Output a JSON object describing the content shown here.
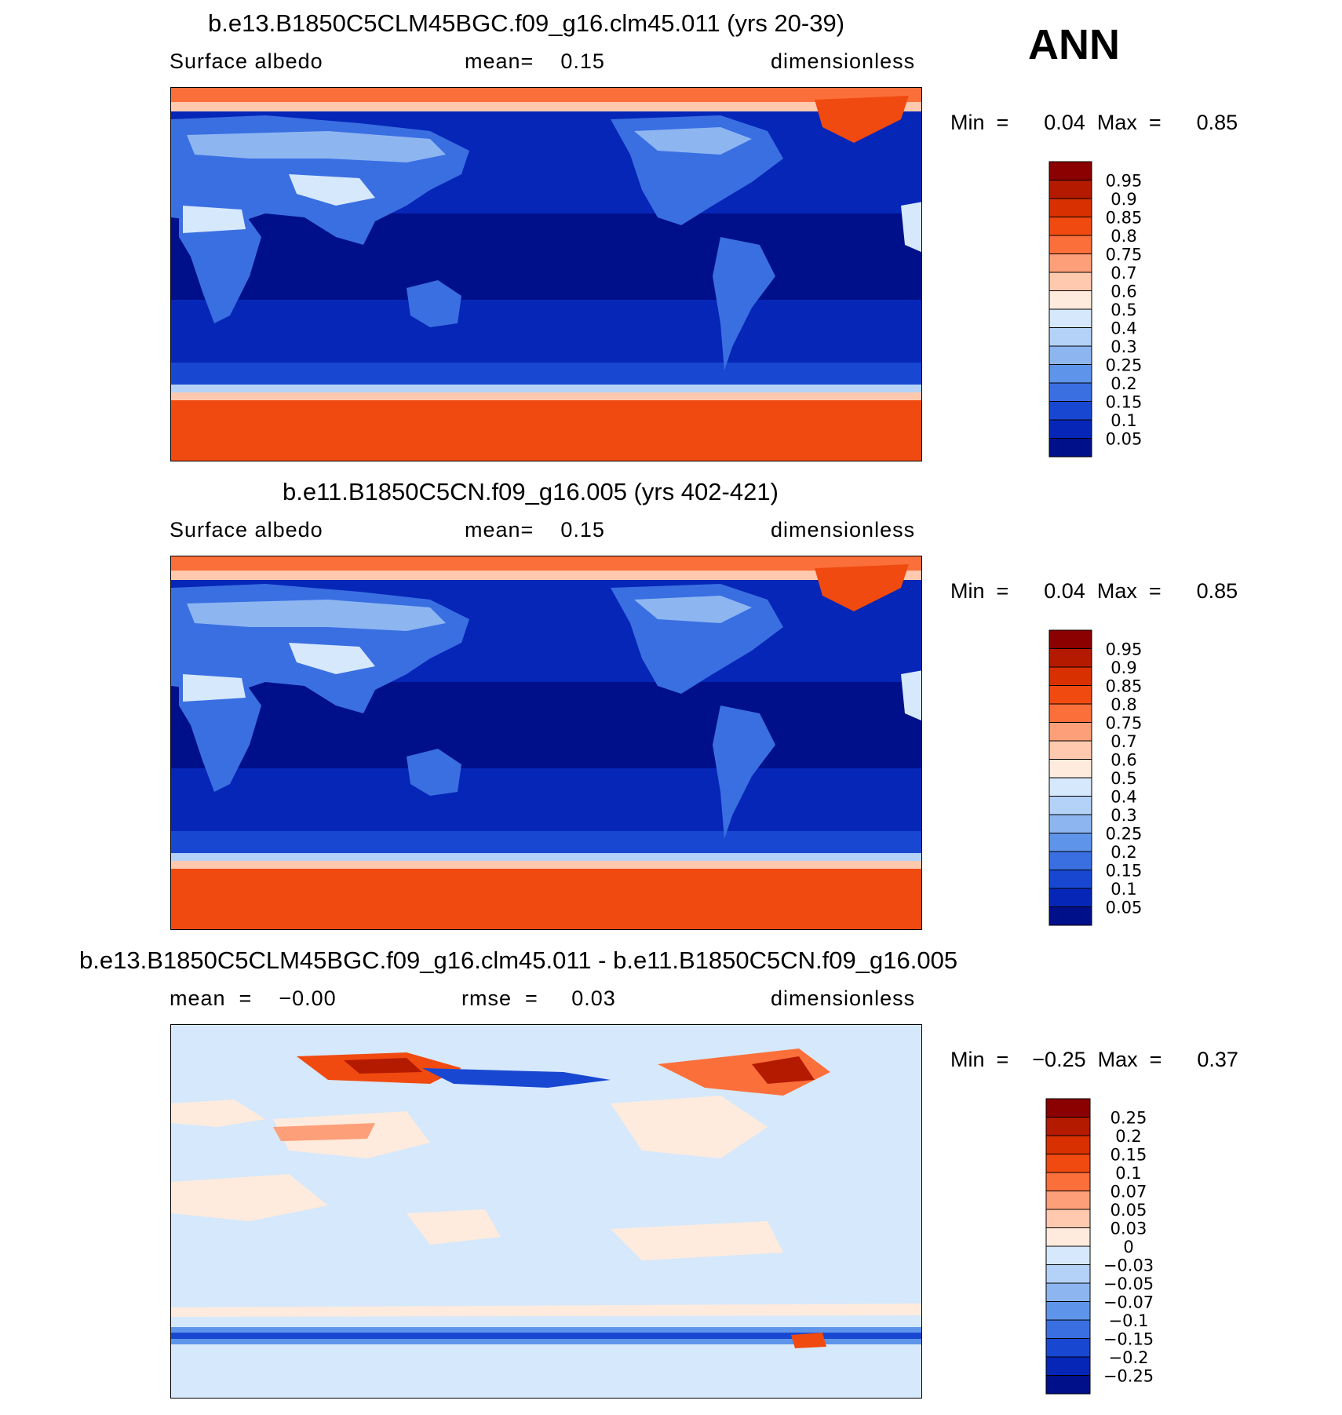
{
  "season": "ANN",
  "panels": [
    {
      "title": "b.e13.B1850C5CLM45BGC.f09_g16.clm45.011 (yrs 20-39)",
      "left": "Surface  albedo",
      "mid": "mean=    0.15",
      "right": "dimensionless",
      "minmax": "Min  =      0.04  Max  =      0.85",
      "colorbar": {
        "levels": [
          "0.95",
          "0.9",
          "0.85",
          "0.8",
          "0.75",
          "0.7",
          "0.6",
          "0.5",
          "0.4",
          "0.3",
          "0.25",
          "0.2",
          "0.15",
          "0.1",
          "0.05"
        ],
        "colors": [
          "#8b0000",
          "#b31a00",
          "#d93000",
          "#f04a10",
          "#fb6f3a",
          "#fd9f78",
          "#fec9ae",
          "#feebdd",
          "#d6e8fb",
          "#b4d2f7",
          "#8db6f1",
          "#5e95ea",
          "#3a6fe2",
          "#1848d2",
          "#0626b8",
          "#00108a"
        ]
      }
    },
    {
      "title": "b.e11.B1850C5CN.f09_g16.005 (yrs 402-421)",
      "left": "Surface  albedo",
      "mid": "mean=    0.15",
      "right": "dimensionless",
      "minmax": "Min  =      0.04  Max  =      0.85",
      "colorbar": {
        "levels": [
          "0.95",
          "0.9",
          "0.85",
          "0.8",
          "0.75",
          "0.7",
          "0.6",
          "0.5",
          "0.4",
          "0.3",
          "0.25",
          "0.2",
          "0.15",
          "0.1",
          "0.05"
        ],
        "colors": [
          "#8b0000",
          "#b31a00",
          "#d93000",
          "#f04a10",
          "#fb6f3a",
          "#fd9f78",
          "#fec9ae",
          "#feebdd",
          "#d6e8fb",
          "#b4d2f7",
          "#8db6f1",
          "#5e95ea",
          "#3a6fe2",
          "#1848d2",
          "#0626b8",
          "#00108a"
        ]
      }
    },
    {
      "title": "b.e13.B1850C5CLM45BGC.f09_g16.clm45.011 - b.e11.B1850C5CN.f09_g16.005",
      "left": "mean  =    −0.00",
      "mid": "rmse  =     0.03",
      "right": "dimensionless",
      "minmax": "Min  =    −0.25  Max  =      0.37",
      "colorbar": {
        "levels": [
          "0.25",
          "0.2",
          "0.15",
          "0.1",
          "0.07",
          "0.05",
          "0.03",
          "0",
          "−0.03",
          "−0.05",
          "−0.07",
          "−0.1",
          "−0.15",
          "−0.2",
          "−0.25"
        ],
        "colors": [
          "#8b0000",
          "#b31a00",
          "#d93000",
          "#f04a10",
          "#fb6f3a",
          "#fd9f78",
          "#fec9ae",
          "#feebdd",
          "#d6e8fb",
          "#b4d2f7",
          "#8db6f1",
          "#5e95ea",
          "#3a6fe2",
          "#1848d2",
          "#0626b8",
          "#00108a"
        ]
      }
    }
  ]
}
